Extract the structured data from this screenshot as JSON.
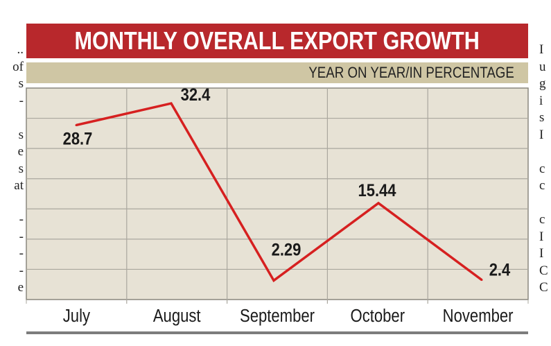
{
  "side_text": {
    "left": [
      "..",
      "of",
      "s",
      "-",
      "",
      "s",
      "e",
      "s",
      "at",
      "",
      "-",
      "-",
      "-",
      "-",
      "e"
    ],
    "right": [
      "I",
      "u",
      "g",
      "i",
      "s",
      "I",
      "",
      "c",
      "c",
      "",
      "c",
      "I",
      "I",
      "C",
      "C"
    ]
  },
  "chart_data": {
    "type": "line",
    "title": "MONTHLY OVERALL EXPORT GROWTH",
    "subtitle": "YEAR ON YEAR/IN PERCENTAGE",
    "categories": [
      "July",
      "August",
      "September",
      "October",
      "November"
    ],
    "values": [
      28.7,
      32.4,
      2.29,
      15.44,
      2.4
    ],
    "labels": [
      "28.7",
      "32.4",
      "2.29",
      "15.44",
      "2.4"
    ],
    "ylim": [
      0,
      35
    ],
    "grid": true,
    "colors": {
      "line": "#d62020",
      "title_bg": "#b8282c",
      "subtitle_bg": "#cfc6a4",
      "plot_bg": "#e7e2d5",
      "grid": "#aaa79e"
    }
  }
}
